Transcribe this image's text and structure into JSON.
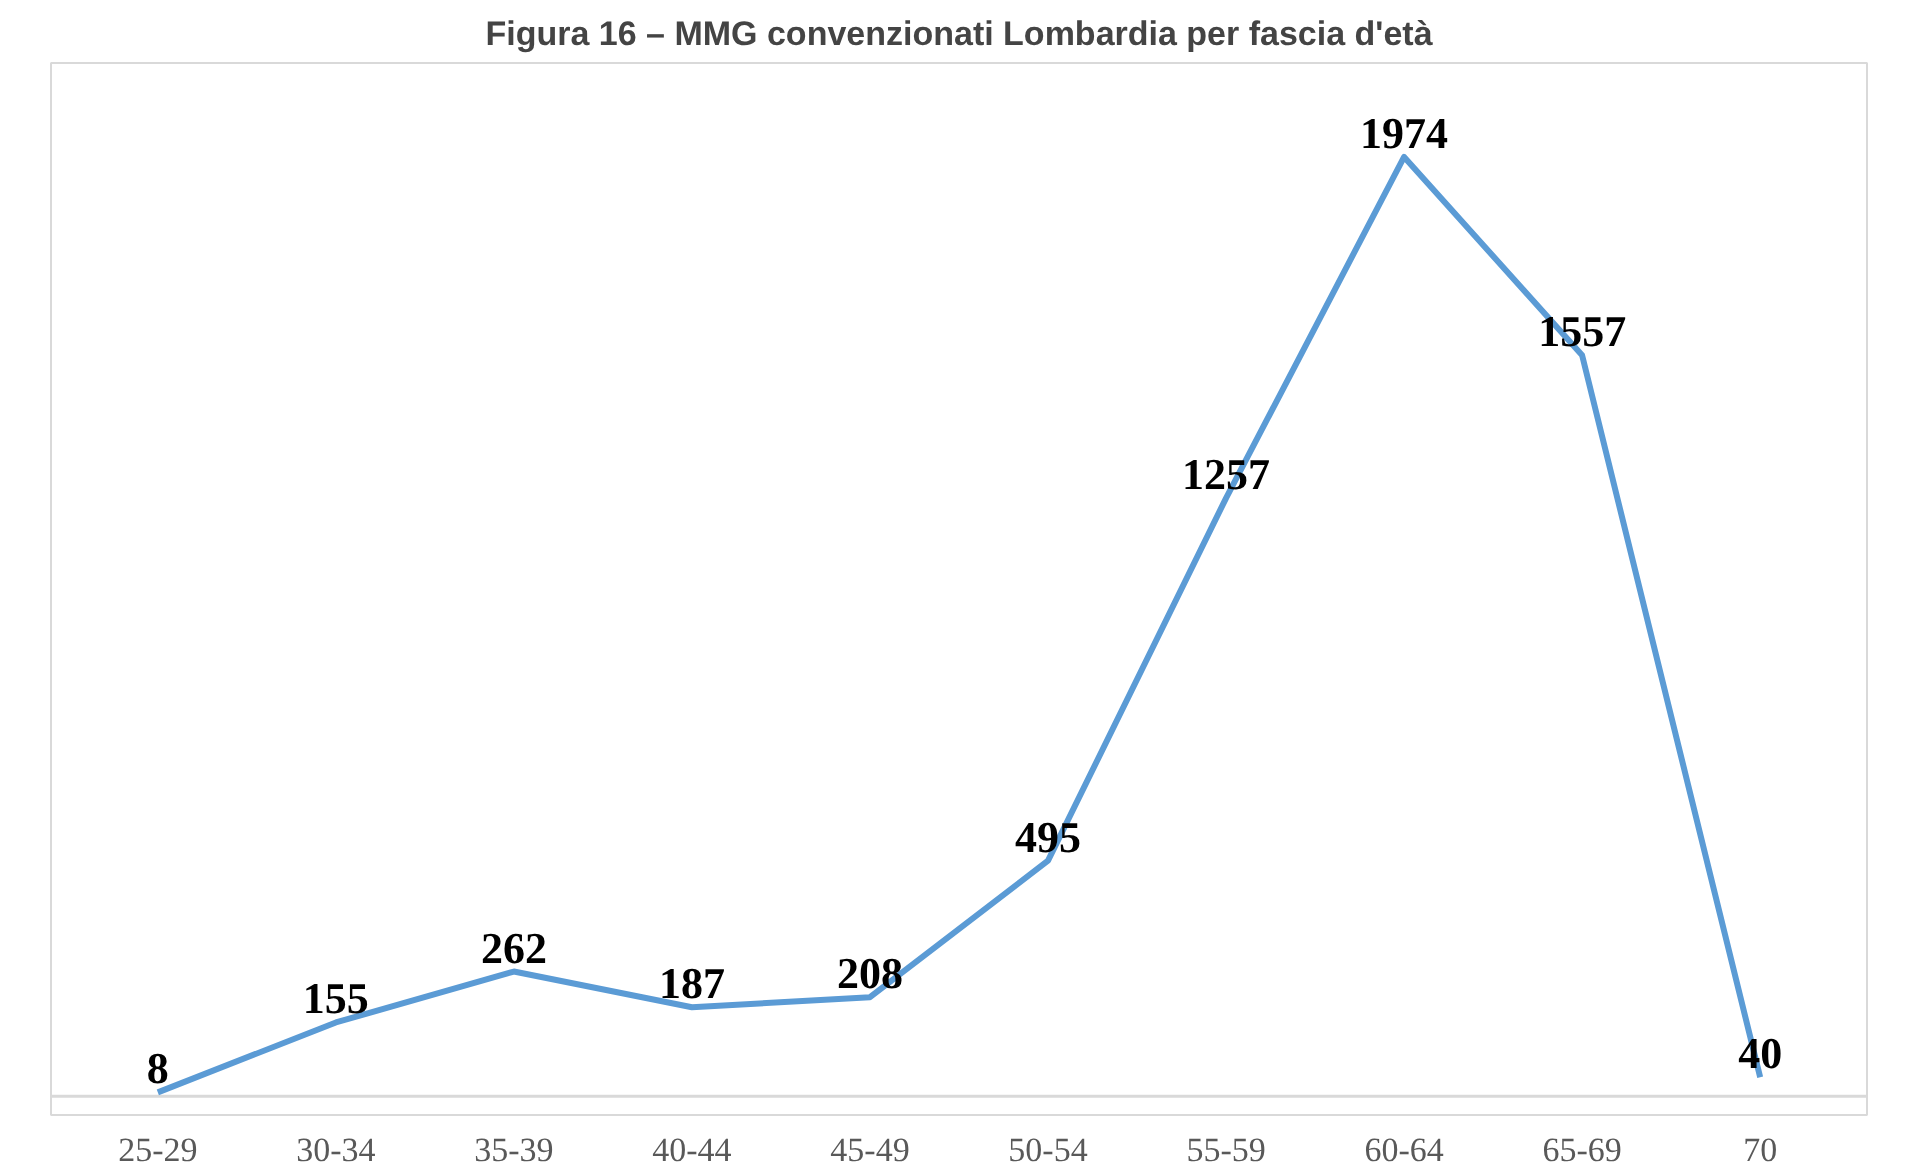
{
  "chart_data": {
    "type": "line",
    "title": "Figura 16 – MMG convenzionati Lombardia per fascia d'età",
    "categories": [
      "25-29",
      "30-34",
      "35-39",
      "40-44",
      "45-49",
      "50-54",
      "55-59",
      "60-64",
      "65-69",
      "70"
    ],
    "series": [
      {
        "color": "#5b9bd5",
        "values": [
          8,
          155,
          262,
          187,
          208,
          495,
          1257,
          1974,
          1557,
          40
        ]
      }
    ],
    "data_labels": true,
    "grid": false,
    "line_style": "solid"
  }
}
